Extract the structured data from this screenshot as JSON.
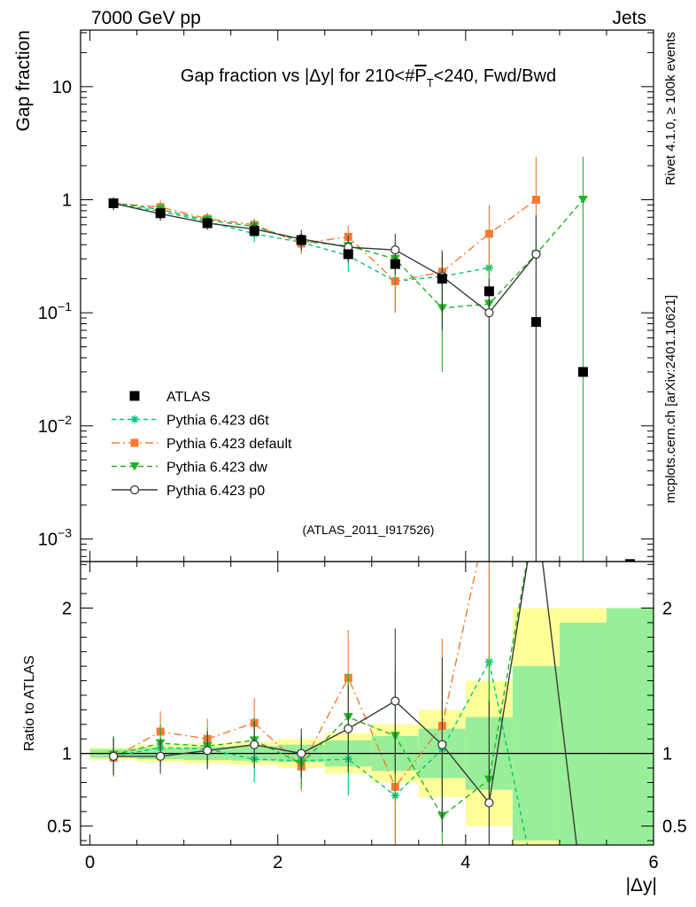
{
  "header": {
    "left": "7000 GeV pp",
    "right": "Jets"
  },
  "side_labels": {
    "rivet": "Rivet 4.1.0, ≥ 100k events",
    "mcplots": "mcplots.cern.ch [arXiv:2401.10621]"
  },
  "chart_data": {
    "type": "line",
    "title": "Gap fraction vs |Δy| for 210<#P_T<240, Fwd/Bwd",
    "title_parts": {
      "a": "Gap fraction vs |Δy| for 210<#",
      "p": "P",
      "t": "T",
      "b": "<240, Fwd/Bwd"
    },
    "analysis_id": "(ATLAS_2011_I917526)",
    "xlabel": "|Δy|",
    "ylabel_main": "Gap fraction",
    "ylabel_ratio": "Ratio to ATLAS",
    "xlim": [
      -0.1,
      6.0
    ],
    "ylim_main_log10": [
      -3.2,
      1.5
    ],
    "ylim_ratio": [
      0.37,
      2.32
    ],
    "xticks": [
      0,
      2,
      4,
      6
    ],
    "xtick_labels": [
      "0",
      "2",
      "4",
      "6"
    ],
    "main_ytick_labels": [
      {
        "exp": 1,
        "text": "10"
      },
      {
        "exp": 0,
        "text": "1"
      },
      {
        "exp": -1,
        "base": "10",
        "sup": "−1"
      },
      {
        "exp": -2,
        "base": "10",
        "sup": "−2"
      },
      {
        "exp": -3,
        "base": "10",
        "sup": "−3"
      }
    ],
    "ratio_ytick_labels": [
      {
        "value": 2,
        "text": "2"
      },
      {
        "value": 1,
        "text": "1"
      },
      {
        "value": 0.5,
        "text": "0.5"
      }
    ],
    "x": [
      0.25,
      0.75,
      1.25,
      1.75,
      2.25,
      2.75,
      3.25,
      3.75,
      4.25,
      4.75,
      5.25,
      5.75
    ],
    "bin_edges": [
      0,
      0.5,
      1.0,
      1.5,
      2.0,
      2.5,
      3.0,
      3.5,
      4.0,
      4.5,
      5.0,
      5.5,
      6.0
    ],
    "atlas": {
      "name": "ATLAS",
      "values": [
        0.93,
        0.76,
        0.62,
        0.53,
        0.44,
        0.33,
        0.27,
        0.2,
        0.155,
        0.083,
        0.03,
        0.0006
      ],
      "band_green": [
        0.03,
        0.04,
        0.045,
        0.05,
        0.06,
        0.09,
        0.12,
        0.17,
        0.25,
        0.6,
        0.9,
        1.0
      ],
      "band_yellow": [
        0.04,
        0.06,
        0.07,
        0.08,
        0.1,
        0.14,
        0.2,
        0.3,
        0.5,
        1.0,
        1.0,
        1.0
      ]
    },
    "series": [
      {
        "name": "Pythia 6.423 d6t",
        "color": "#00c87a",
        "dash": "5,4",
        "marker": "star",
        "values": [
          0.92,
          0.79,
          0.64,
          0.5,
          0.42,
          0.32,
          0.19,
          0.21,
          0.25,
          null,
          null,
          null
        ],
        "errors": [
          0.12,
          0.1,
          0.09,
          0.08,
          0.08,
          0.09,
          0.09,
          0.12,
          0.25,
          null,
          null,
          null
        ],
        "ratio": [
          0.98,
          1.04,
          1.03,
          0.96,
          0.95,
          0.96,
          0.71,
          1.03,
          1.63,
          0.08,
          null,
          null
        ],
        "ratio_err": [
          0.13,
          0.12,
          0.13,
          0.16,
          0.17,
          0.25,
          0.35,
          0.5,
          1.0,
          null,
          null,
          null
        ]
      },
      {
        "name": "Pythia 6.423 default",
        "color": "#f57a32",
        "dash": "9,4,2,4",
        "marker": "square",
        "values": [
          0.93,
          0.86,
          0.68,
          0.6,
          0.41,
          0.47,
          0.19,
          0.23,
          0.5,
          1.0,
          null,
          null
        ],
        "errors": [
          0.12,
          0.12,
          0.09,
          0.08,
          0.08,
          0.12,
          0.09,
          0.13,
          0.4,
          1.4,
          null,
          null
        ],
        "ratio": [
          0.97,
          1.15,
          1.1,
          1.21,
          0.91,
          1.52,
          0.77,
          1.19,
          3.2,
          12.0,
          null,
          null
        ],
        "ratio_err": [
          0.13,
          0.14,
          0.14,
          0.17,
          0.17,
          0.33,
          0.4,
          0.6,
          2.0,
          null,
          null,
          null
        ]
      },
      {
        "name": "Pythia 6.423 dw",
        "color": "#22b425",
        "dash": "6,4",
        "marker": "triangle",
        "values": [
          0.94,
          0.82,
          0.66,
          0.58,
          0.43,
          0.39,
          0.3,
          0.11,
          0.12,
          0.33,
          1.0,
          null
        ],
        "errors": [
          0.12,
          0.11,
          0.09,
          0.08,
          0.08,
          0.1,
          0.12,
          0.08,
          0.12,
          0.4,
          1.4,
          null
        ],
        "ratio": [
          0.99,
          1.07,
          1.05,
          1.09,
          0.93,
          1.25,
          1.12,
          0.57,
          0.82,
          3.5,
          25.0,
          null
        ],
        "ratio_err": [
          0.13,
          0.13,
          0.13,
          0.16,
          0.17,
          0.3,
          0.45,
          0.35,
          0.8,
          null,
          null,
          null
        ]
      },
      {
        "name": "Pythia 6.423 p0",
        "color": "#3a3a3a",
        "dash": "",
        "marker": "circle",
        "values": [
          0.93,
          0.75,
          0.62,
          0.55,
          0.45,
          0.38,
          0.36,
          0.21,
          0.1,
          0.33,
          null,
          null
        ],
        "errors": [
          0.11,
          0.1,
          0.08,
          0.08,
          0.09,
          0.1,
          0.14,
          0.14,
          0.1,
          0.4,
          null,
          null
        ],
        "ratio": [
          0.98,
          0.98,
          1.02,
          1.06,
          1.0,
          1.17,
          1.36,
          1.06,
          0.66,
          3.8,
          0.0,
          null
        ],
        "ratio_err": [
          0.13,
          0.12,
          0.13,
          0.16,
          0.17,
          0.3,
          0.5,
          0.6,
          0.7,
          null,
          null,
          null
        ]
      }
    ]
  }
}
